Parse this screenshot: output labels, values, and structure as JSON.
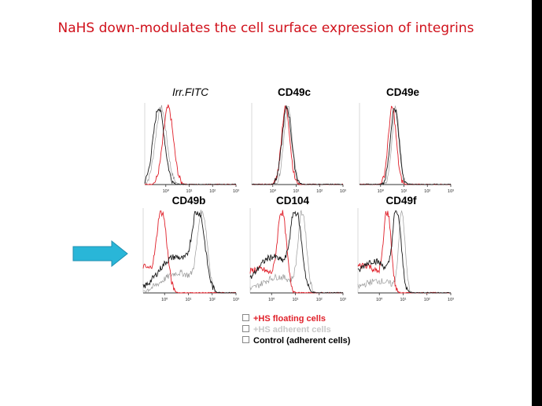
{
  "slide": {
    "title": "NaHS down-modulates the cell surface expression of integrins"
  },
  "colors": {
    "title": "#d0111b",
    "floating": "#e0202a",
    "adherent": "#9a9a9a",
    "control": "#1a1a1a",
    "arrow": "#29b6d8"
  },
  "chart_data": {
    "type": "histogram-panel-grid",
    "x_scale": "log",
    "x_tick_labels": [
      "10⁰",
      "10¹",
      "10²",
      "10³"
    ],
    "series": [
      {
        "name": "+HS floating cells",
        "color": "#e0202a"
      },
      {
        "name": "+HS adherent cells",
        "color": "#9a9a9a"
      },
      {
        "name": "Control (adherent cells)",
        "color": "#1a1a1a"
      }
    ],
    "panels": [
      {
        "title": "Irr.FITC",
        "italic": true,
        "peaks": [
          0.1,
          -0.2,
          -0.3
        ],
        "widths": [
          0.22,
          0.24,
          0.24
        ],
        "tails": [
          0,
          0,
          0
        ]
      },
      {
        "title": "CD49c",
        "italic": false,
        "peaks": [
          0.55,
          0.65,
          0.6
        ],
        "widths": [
          0.18,
          0.18,
          0.2
        ],
        "tails": [
          0,
          0,
          0
        ]
      },
      {
        "title": "CD49e",
        "italic": false,
        "peaks": [
          0.5,
          0.65,
          0.6
        ],
        "widths": [
          0.17,
          0.16,
          0.18
        ],
        "tails": [
          0,
          0,
          0
        ]
      },
      {
        "title": "CD49b",
        "italic": false,
        "peaks": [
          -0.1,
          1.6,
          1.45
        ],
        "widths": [
          0.2,
          0.2,
          0.25
        ],
        "tails": [
          0.35,
          0.25,
          0.45
        ]
      },
      {
        "title": "CD104",
        "italic": false,
        "peaks": [
          0.45,
          1.3,
          1.05
        ],
        "widths": [
          0.18,
          0.17,
          0.22
        ],
        "tails": [
          0.3,
          0.2,
          0.45
        ]
      },
      {
        "title": "CD49f",
        "italic": false,
        "peaks": [
          0.35,
          0.95,
          0.75
        ],
        "widths": [
          0.15,
          0.13,
          0.17
        ],
        "tails": [
          0.35,
          0.15,
          0.4
        ]
      }
    ]
  }
}
